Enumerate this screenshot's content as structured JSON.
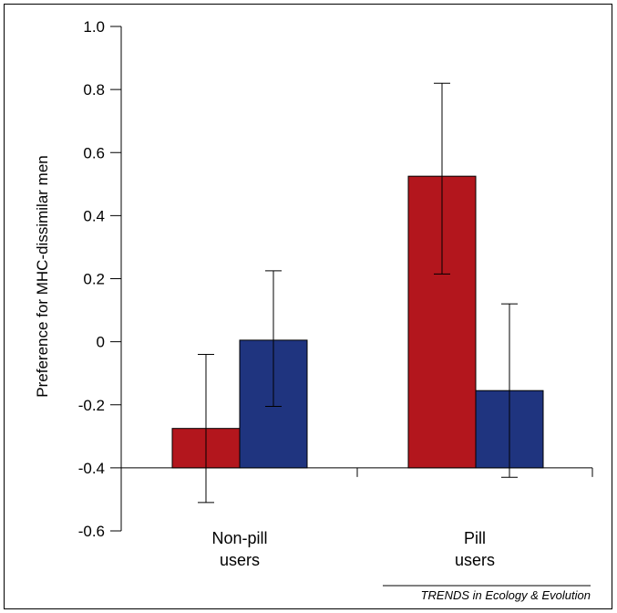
{
  "chart_data": {
    "type": "bar",
    "categories": [
      "Non-pill\nusers",
      "Pill\nusers"
    ],
    "series": [
      {
        "color": "#b3161d",
        "values": [
          -0.275,
          0.525
        ],
        "error_low": [
          -0.51,
          0.215
        ],
        "error_high": [
          -0.04,
          0.82
        ]
      },
      {
        "color": "#1f347f",
        "values": [
          0.005,
          -0.155
        ],
        "error_low": [
          -0.205,
          -0.43
        ],
        "error_high": [
          0.225,
          0.12
        ]
      }
    ],
    "ylabel": "Preference for MHC-dissimilar men",
    "xlabel": "",
    "ylim": [
      -0.6,
      1.0
    ],
    "yticks": [
      1.0,
      0.8,
      0.6,
      0.4,
      0.2,
      0,
      -0.2,
      -0.4,
      -0.6
    ],
    "ytick_labels": [
      "1.0",
      "0.8",
      "0.6",
      "0.4",
      "0.2",
      "0",
      "-0.2",
      "-0.4",
      "-0.6"
    ],
    "bar_baseline": -0.4,
    "grid": false,
    "legend": "none"
  },
  "footer": {
    "source": "TRENDS in Ecology & Evolution"
  }
}
